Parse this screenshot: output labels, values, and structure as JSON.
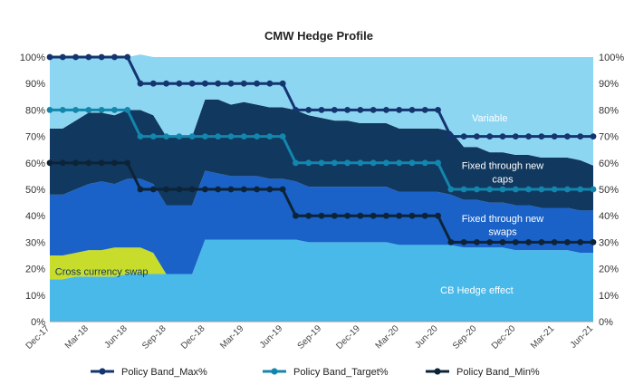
{
  "chart_data": {
    "type": "area",
    "title": "CMW Hedge Profile",
    "xlabel": "",
    "ylabel": "",
    "ylim": [
      0,
      100
    ],
    "yticks": [
      "0%",
      "10%",
      "20%",
      "30%",
      "40%",
      "50%",
      "60%",
      "70%",
      "80%",
      "90%",
      "100%"
    ],
    "x": [
      "2017-12",
      "2018-01",
      "2018-02",
      "2018-03",
      "2018-04",
      "2018-05",
      "2018-06",
      "2018-07",
      "2018-08",
      "2018-09",
      "2018-10",
      "2018-11",
      "2018-12",
      "2019-01",
      "2019-02",
      "2019-03",
      "2019-04",
      "2019-05",
      "2019-06",
      "2019-07",
      "2019-08",
      "2019-09",
      "2019-10",
      "2019-11",
      "2019-12",
      "2020-01",
      "2020-02",
      "2020-03",
      "2020-04",
      "2020-05",
      "2020-06",
      "2020-07",
      "2020-08",
      "2020-09",
      "2020-10",
      "2020-11",
      "2020-12",
      "2021-01",
      "2021-02",
      "2021-03",
      "2021-04",
      "2021-05",
      "2021-06"
    ],
    "xtick_labels": [
      {
        "label": "Dec-17",
        "index": 0
      },
      {
        "label": "Mar-18",
        "index": 3
      },
      {
        "label": "Jun-18",
        "index": 6
      },
      {
        "label": "Sep-18",
        "index": 9
      },
      {
        "label": "Dec-18",
        "index": 12
      },
      {
        "label": "Mar-19",
        "index": 15
      },
      {
        "label": "Jun-19",
        "index": 18
      },
      {
        "label": "Sep-19",
        "index": 21
      },
      {
        "label": "Dec-19",
        "index": 24
      },
      {
        "label": "Mar-20",
        "index": 27
      },
      {
        "label": "Jun-20",
        "index": 30
      },
      {
        "label": "Sep-20",
        "index": 33
      },
      {
        "label": "Dec-20",
        "index": 36
      },
      {
        "label": "Mar-21",
        "index": 39
      },
      {
        "label": "Jun-21",
        "index": 42
      }
    ],
    "stack": [
      {
        "name": "CB Hedge effect",
        "color": "#49b9ea",
        "values": [
          16,
          16,
          17,
          17,
          17,
          17,
          18,
          18,
          18,
          18,
          18,
          18,
          31,
          31,
          31,
          31,
          31,
          31,
          31,
          31,
          30,
          30,
          30,
          30,
          30,
          30,
          30,
          29,
          29,
          29,
          29,
          29,
          28,
          28,
          28,
          28,
          27,
          27,
          27,
          27,
          27,
          26,
          26
        ]
      },
      {
        "name": "Cross currency swap",
        "color": "#c8dc2b",
        "values": [
          9,
          9,
          9,
          10,
          10,
          11,
          10,
          10,
          8,
          0,
          0,
          0,
          0,
          0,
          0,
          0,
          0,
          0,
          0,
          0,
          0,
          0,
          0,
          0,
          0,
          0,
          0,
          0,
          0,
          0,
          0,
          0,
          0,
          0,
          0,
          0,
          0,
          0,
          0,
          0,
          0,
          0,
          0
        ]
      },
      {
        "name": "Fixed through new swaps",
        "color": "#1a62c8",
        "values": [
          23,
          23,
          24,
          25,
          26,
          24,
          26,
          26,
          26,
          26,
          26,
          26,
          26,
          25,
          24,
          24,
          24,
          23,
          23,
          22,
          21,
          21,
          21,
          21,
          21,
          21,
          21,
          20,
          20,
          20,
          20,
          19,
          18,
          18,
          17,
          17,
          17,
          17,
          16,
          16,
          16,
          16,
          16
        ]
      },
      {
        "name": "Fixed through new caps",
        "color": "#11385e",
        "values": [
          25,
          25,
          26,
          27,
          26,
          26,
          26,
          26,
          26,
          26,
          26,
          26,
          27,
          28,
          27,
          28,
          27,
          27,
          27,
          27,
          27,
          26,
          25,
          25,
          24,
          24,
          24,
          24,
          24,
          24,
          24,
          24,
          20,
          20,
          19,
          19,
          19,
          19,
          19,
          19,
          19,
          19,
          17
        ]
      },
      {
        "name": "Variable",
        "color": "#8dd6f2",
        "values": [
          27,
          27,
          24,
          21,
          21,
          22,
          20,
          21,
          22,
          30,
          30,
          30,
          16,
          16,
          18,
          17,
          18,
          19,
          19,
          20,
          22,
          23,
          24,
          24,
          25,
          25,
          25,
          27,
          27,
          27,
          27,
          28,
          34,
          34,
          36,
          36,
          37,
          37,
          38,
          38,
          38,
          39,
          41
        ]
      }
    ],
    "annotations": [
      {
        "text": "Variable",
        "color": "#ffffff",
        "x_index": 34,
        "y": 77
      },
      {
        "text": "Fixed through new",
        "color": "#ffffff",
        "x_index": 35,
        "y": 59
      },
      {
        "text": "caps",
        "color": "#ffffff",
        "x_index": 35,
        "y": 54
      },
      {
        "text": "Fixed through new",
        "color": "#ffffff",
        "x_index": 35,
        "y": 39
      },
      {
        "text": "swaps",
        "color": "#ffffff",
        "x_index": 35,
        "y": 34
      },
      {
        "text": "CB Hedge effect",
        "color": "#ffffff",
        "x_index": 33,
        "y": 12
      },
      {
        "text": "Cross currency swap",
        "color": "#11385e",
        "x_index": 4,
        "y": 19
      }
    ],
    "series": [
      {
        "name": "Policy Band_Max%",
        "color": "#14356f",
        "values": [
          100,
          100,
          100,
          100,
          100,
          100,
          100,
          90,
          90,
          90,
          90,
          90,
          90,
          90,
          90,
          90,
          90,
          90,
          90,
          80,
          80,
          80,
          80,
          80,
          80,
          80,
          80,
          80,
          80,
          80,
          80,
          70,
          70,
          70,
          70,
          70,
          70,
          70,
          70,
          70,
          70,
          70,
          70
        ]
      },
      {
        "name": "Policy Band_Target%",
        "color": "#1386ad",
        "values": [
          80,
          80,
          80,
          80,
          80,
          80,
          80,
          70,
          70,
          70,
          70,
          70,
          70,
          70,
          70,
          70,
          70,
          70,
          70,
          60,
          60,
          60,
          60,
          60,
          60,
          60,
          60,
          60,
          60,
          60,
          60,
          50,
          50,
          50,
          50,
          50,
          50,
          50,
          50,
          50,
          50,
          50,
          50
        ]
      },
      {
        "name": "Policy Band_Min%",
        "color": "#0d2438",
        "values": [
          60,
          60,
          60,
          60,
          60,
          60,
          60,
          50,
          50,
          50,
          50,
          50,
          50,
          50,
          50,
          50,
          50,
          50,
          50,
          40,
          40,
          40,
          40,
          40,
          40,
          40,
          40,
          40,
          40,
          40,
          40,
          30,
          30,
          30,
          30,
          30,
          30,
          30,
          30,
          30,
          30,
          30,
          30
        ]
      }
    ],
    "legend_position": "bottom",
    "grid": false
  }
}
